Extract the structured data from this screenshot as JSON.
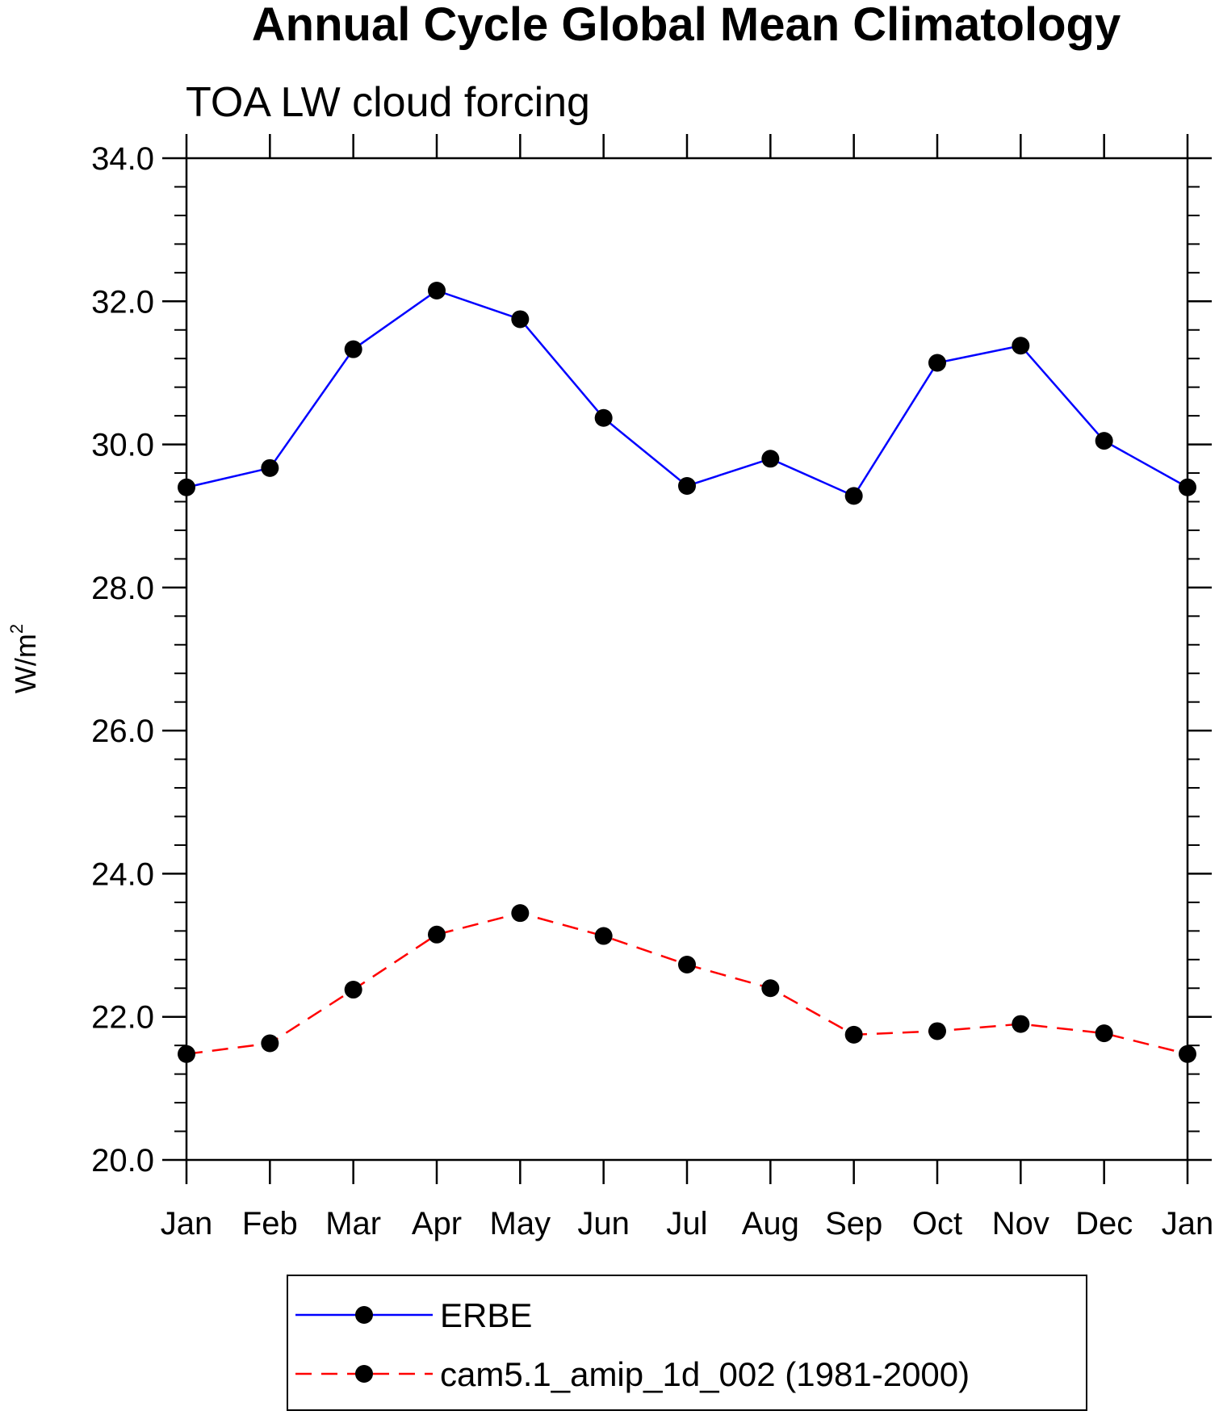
{
  "chart_data": {
    "type": "line",
    "title": "Annual Cycle Global Mean Climatology",
    "subtitle": "TOA LW cloud forcing",
    "ylabel_base": "W/m",
    "ylabel_sup": "2",
    "ylim": [
      20.0,
      34.0
    ],
    "y_ticks": [
      "20.0",
      "22.0",
      "24.0",
      "26.0",
      "28.0",
      "30.0",
      "32.0",
      "34.0"
    ],
    "categories": [
      "Jan",
      "Feb",
      "Mar",
      "Apr",
      "May",
      "Jun",
      "Jul",
      "Aug",
      "Sep",
      "Oct",
      "Nov",
      "Dec",
      "Jan"
    ],
    "grid": false,
    "legend_position": "bottom",
    "series": [
      {
        "name": "ERBE",
        "color": "#0000ff",
        "line_style": "solid",
        "marker": "filled-circle",
        "values": [
          29.4,
          29.67,
          31.33,
          32.15,
          31.75,
          30.37,
          29.42,
          29.8,
          29.28,
          31.14,
          31.38,
          30.05,
          29.4
        ]
      },
      {
        "name": "cam5.1_amip_1d_002 (1981-2000)",
        "color": "#ff0000",
        "line_style": "dashed",
        "marker": "filled-circle",
        "values": [
          21.48,
          21.63,
          22.38,
          23.15,
          23.45,
          23.13,
          22.73,
          22.4,
          21.75,
          21.8,
          21.9,
          21.77,
          21.48
        ]
      }
    ]
  }
}
